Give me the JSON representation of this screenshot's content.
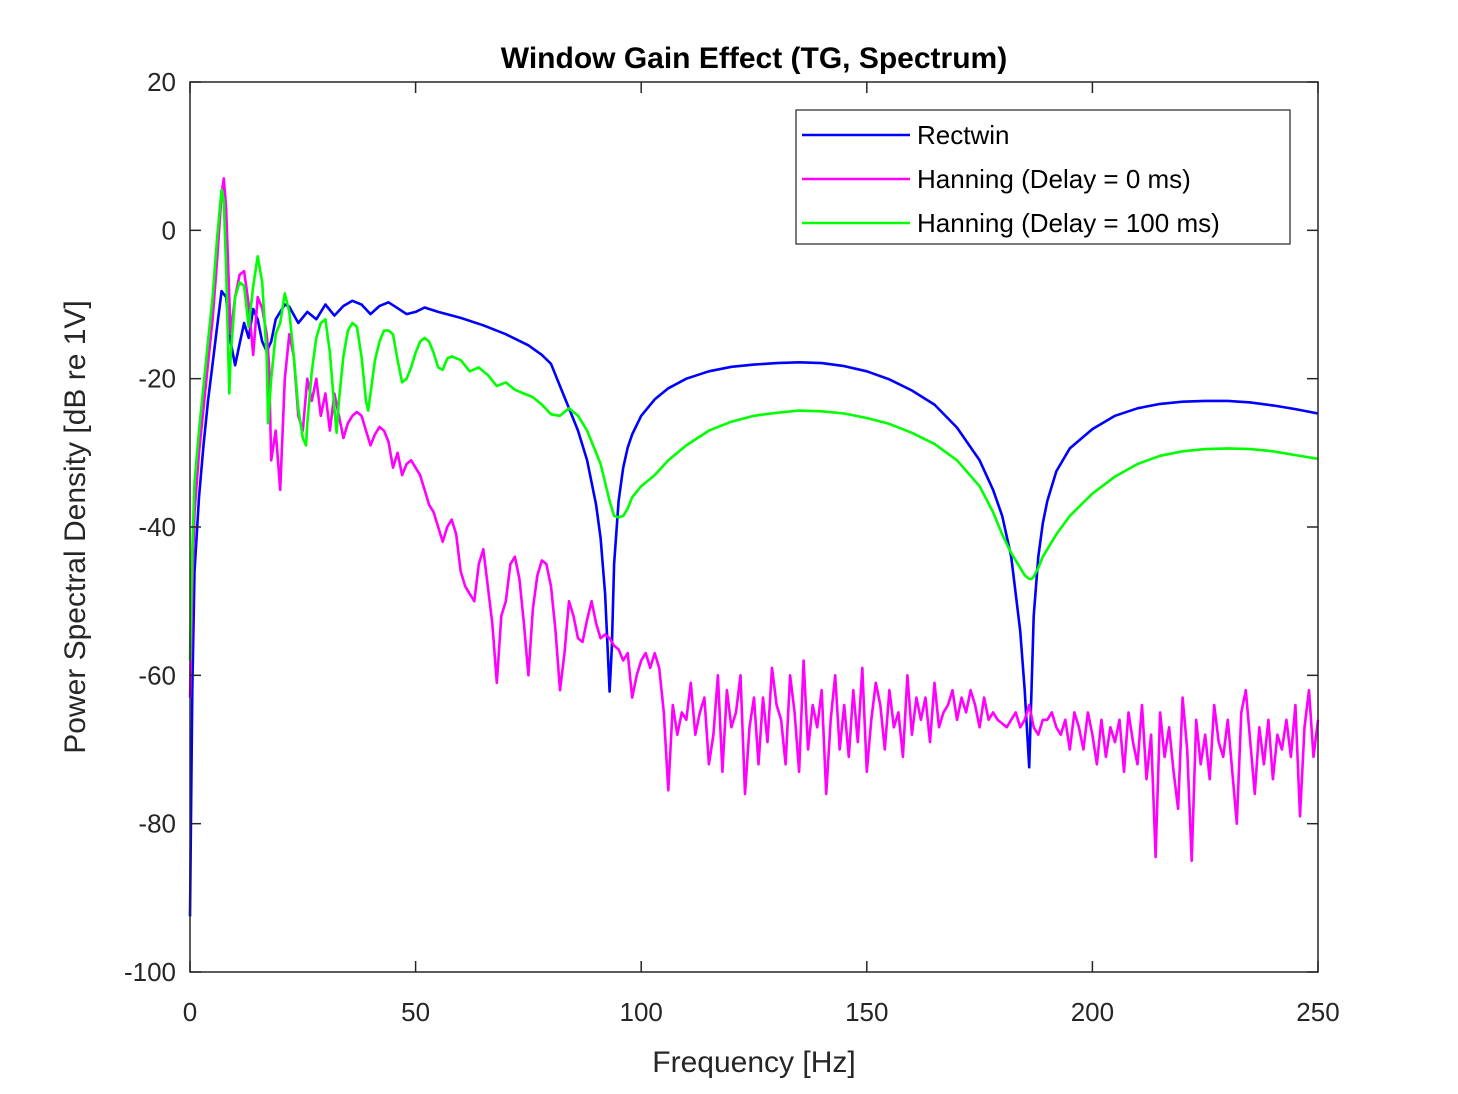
{
  "chart_data": {
    "type": "line",
    "title": "Window Gain Effect (TG, Spectrum)",
    "xlabel": "Frequency [Hz]",
    "ylabel": "Power Spectral Density [dB re 1V]",
    "xlim": [
      0,
      250
    ],
    "ylim": [
      -100,
      20
    ],
    "xticks": [
      0,
      50,
      100,
      150,
      200,
      250
    ],
    "yticks": [
      20,
      0,
      -20,
      -40,
      -60,
      -80,
      -100
    ],
    "grid": false,
    "legend_position": "top-right",
    "series": [
      {
        "name": "Rectwin",
        "color": "#0000ff",
        "x": [
          0,
          0.5,
          1,
          2,
          3,
          4,
          5,
          6,
          7,
          8,
          9,
          10,
          11,
          12,
          13,
          14,
          15,
          16,
          17,
          18,
          19,
          20,
          21,
          22,
          24,
          26,
          28,
          30,
          32,
          34,
          36,
          38,
          40,
          42,
          44,
          46,
          48,
          50,
          52,
          55,
          60,
          65,
          70,
          75,
          78,
          80,
          82,
          84,
          86,
          88,
          90,
          91,
          92,
          93,
          93.5,
          94,
          95,
          96,
          97,
          98,
          100,
          103,
          106,
          110,
          115,
          120,
          125,
          130,
          135,
          140,
          145,
          150,
          155,
          160,
          165,
          170,
          175,
          178,
          180,
          182,
          184,
          185,
          186,
          186.5,
          187,
          188,
          189,
          190,
          192,
          195,
          200,
          205,
          210,
          215,
          220,
          225,
          230,
          235,
          240,
          245,
          250
        ],
        "y": [
          -92.5,
          -62,
          -46,
          -36,
          -29,
          -23,
          -18,
          -13,
          -8.2,
          -9,
          -15,
          -18.2,
          -15.3,
          -12.5,
          -14.5,
          -10.6,
          -12,
          -15,
          -16.3,
          -15,
          -12,
          -11,
          -10,
          -10.3,
          -12.5,
          -11,
          -12,
          -10,
          -11.5,
          -10.2,
          -9.5,
          -10,
          -11.3,
          -10.2,
          -9.7,
          -10.5,
          -11.3,
          -11,
          -10.4,
          -11,
          -11.8,
          -12.8,
          -14,
          -15.5,
          -16.8,
          -18,
          -21,
          -24,
          -27,
          -31,
          -37,
          -41.5,
          -49,
          -62.2,
          -56,
          -45,
          -36.5,
          -32,
          -29.3,
          -27.5,
          -25,
          -22.8,
          -21.3,
          -20,
          -19,
          -18.4,
          -18.1,
          -17.9,
          -17.8,
          -17.9,
          -18.3,
          -19,
          -20.1,
          -21.6,
          -23.5,
          -26.6,
          -31,
          -35,
          -38.5,
          -44,
          -54,
          -62,
          -72.4,
          -62,
          -52,
          -44,
          -39.5,
          -36.5,
          -32.5,
          -29.4,
          -26.8,
          -25,
          -24,
          -23.4,
          -23.1,
          -23,
          -23,
          -23.2,
          -23.6,
          -24.1,
          -24.7
        ]
      },
      {
        "name": "Hanning (Delay = 0 ms)",
        "color": "#ff00ff",
        "x": [
          0,
          0.5,
          1,
          2,
          3,
          4,
          5,
          6,
          7,
          7.5,
          8,
          9,
          10,
          11,
          12,
          13,
          14,
          15,
          16,
          17,
          17.5,
          18,
          19,
          20,
          21,
          22,
          23,
          24,
          25,
          26,
          27,
          28,
          29,
          30,
          31,
          32,
          33,
          34,
          35,
          36,
          37,
          38,
          39,
          40,
          41,
          42,
          43,
          44,
          45,
          46,
          47,
          48,
          49,
          50,
          51,
          52,
          53,
          54,
          55,
          56,
          57,
          58,
          59,
          60,
          61,
          62,
          63,
          64,
          65,
          66,
          67,
          68,
          69,
          70,
          71,
          72,
          73,
          74,
          75,
          76,
          77,
          78,
          79,
          80,
          81,
          82,
          83,
          84,
          85,
          86,
          87,
          88,
          89,
          90,
          91,
          92,
          93,
          94,
          95,
          96,
          97,
          98,
          99,
          100,
          101,
          102,
          103,
          104,
          105,
          106,
          107,
          108,
          109,
          110,
          111,
          112,
          113,
          114,
          115,
          116,
          117,
          118,
          119,
          120,
          121,
          122,
          123,
          124,
          125,
          126,
          127,
          128,
          129,
          130,
          131,
          132,
          133,
          134,
          135,
          136,
          137,
          138,
          139,
          140,
          141,
          142,
          143,
          144,
          145,
          146,
          147,
          148,
          149,
          150,
          151,
          152,
          153,
          154,
          155,
          156,
          157,
          158,
          159,
          160,
          161,
          162,
          163,
          164,
          165,
          166,
          167,
          168,
          169,
          170,
          171,
          172,
          173,
          174,
          175,
          176,
          177,
          178,
          179,
          180,
          181,
          182,
          183,
          184,
          185,
          186,
          187,
          188,
          189,
          190,
          191,
          192,
          193,
          194,
          195,
          196,
          197,
          198,
          199,
          200,
          201,
          202,
          203,
          204,
          205,
          206,
          207,
          208,
          209,
          210,
          211,
          212,
          213,
          214,
          215,
          216,
          217,
          218,
          219,
          220,
          221,
          222,
          223,
          224,
          225,
          226,
          227,
          228,
          229,
          230,
          231,
          232,
          233,
          234,
          235,
          236,
          237,
          238,
          239,
          240,
          241,
          242,
          243,
          244,
          245,
          246,
          247,
          248,
          249,
          250
        ],
        "y": [
          -63,
          -48,
          -38,
          -30,
          -24,
          -18,
          -12,
          -4,
          5,
          7,
          3,
          -14,
          -9,
          -6,
          -5.5,
          -10,
          -16.8,
          -9,
          -10.5,
          -14,
          -18,
          -31,
          -27,
          -35,
          -20,
          -14,
          -17,
          -25,
          -27,
          -20,
          -23,
          -20,
          -25,
          -22,
          -27,
          -22,
          -25,
          -28,
          -26,
          -25,
          -24.5,
          -25,
          -27,
          -29,
          -27.5,
          -26.5,
          -27,
          -28.5,
          -32,
          -30,
          -33,
          -31.5,
          -31,
          -32,
          -33,
          -35,
          -37,
          -38,
          -40,
          -42,
          -40,
          -39,
          -41,
          -46,
          -48,
          -49,
          -50,
          -45,
          -43,
          -48,
          -53,
          -61,
          -52,
          -50,
          -45,
          -44,
          -47,
          -53,
          -60,
          -51,
          -46.5,
          -44.5,
          -45,
          -48,
          -54,
          -62,
          -57,
          -50,
          -52,
          -55,
          -55.5,
          -52.5,
          -50,
          -53,
          -55,
          -54.5,
          -55,
          -56,
          -56.5,
          -58,
          -57,
          -63,
          -60,
          -58,
          -57,
          -59,
          -57,
          -59,
          -65,
          -75.5,
          -64,
          -68,
          -65,
          -66,
          -61,
          -68,
          -65,
          -63,
          -72,
          -68,
          -60,
          -73,
          -62,
          -67,
          -65,
          -60,
          -76,
          -67,
          -63,
          -72,
          -63,
          -69,
          -59,
          -64,
          -66,
          -72,
          -60,
          -65,
          -73,
          -58,
          -70,
          -64,
          -67,
          -62,
          -76,
          -66,
          -60,
          -70,
          -64,
          -71,
          -62,
          -69,
          -59,
          -73,
          -66,
          -61,
          -64,
          -70,
          -62,
          -67,
          -65,
          -71,
          -60,
          -68,
          -63,
          -66,
          -63,
          -69,
          -61,
          -67,
          -65,
          -64,
          -62,
          -66,
          -63,
          -65,
          -62,
          -64,
          -67,
          -63,
          -66,
          -65,
          -66,
          -66.5,
          -67,
          -66,
          -65,
          -67,
          -66,
          -64,
          -67,
          -68,
          -66,
          -66,
          -65,
          -67,
          -68,
          -66,
          -70,
          -65,
          -67,
          -70,
          -65,
          -68,
          -72,
          -66,
          -71,
          -67,
          -69,
          -66,
          -73,
          -65,
          -69,
          -72,
          -64,
          -74,
          -68,
          -84.5,
          -65,
          -71,
          -67,
          -73,
          -78,
          -63,
          -70,
          -85,
          -66,
          -72,
          -68,
          -74,
          -64,
          -69,
          -71,
          -66,
          -73,
          -80,
          -65,
          -62,
          -69,
          -76,
          -67,
          -72,
          -66,
          -74,
          -68,
          -70,
          -66,
          -71,
          -64,
          -79,
          -67,
          -62,
          -71,
          -66
        ]
      },
      {
        "name": "Hanning (Delay = 100 ms)",
        "color": "#00ff00",
        "x": [
          0,
          0.5,
          1,
          2,
          3,
          4,
          5,
          6,
          7,
          7.5,
          8,
          8.7,
          9,
          10,
          11,
          12,
          13,
          14,
          15,
          16,
          17,
          17.3,
          18,
          19,
          20,
          21,
          22,
          23,
          24,
          25,
          25.7,
          26,
          27,
          28,
          29,
          30,
          31,
          32,
          32.5,
          33,
          34,
          35,
          36,
          37,
          38,
          39,
          39.5,
          40,
          41,
          42,
          43,
          44,
          45,
          46,
          47,
          48,
          49,
          50,
          51,
          52,
          53,
          54,
          55,
          56,
          57,
          58,
          60,
          62,
          64,
          66,
          68,
          70,
          72,
          74,
          76,
          78,
          80,
          82,
          84,
          86,
          88,
          90,
          91,
          92,
          93,
          94,
          95,
          96,
          97,
          98,
          100,
          103,
          106,
          110,
          115,
          120,
          125,
          130,
          135,
          140,
          145,
          150,
          155,
          160,
          165,
          170,
          175,
          178,
          180,
          182,
          184,
          185,
          186,
          186.5,
          187,
          188,
          189,
          190,
          192,
          195,
          200,
          205,
          210,
          215,
          220,
          225,
          230,
          235,
          240,
          245,
          250
        ],
        "y": [
          -58,
          -43,
          -34,
          -27,
          -21,
          -15,
          -9,
          -1,
          5.5,
          4,
          -5,
          -22,
          -17,
          -9,
          -7,
          -7.5,
          -13,
          -7.5,
          -3.5,
          -7,
          -17,
          -26,
          -20,
          -14,
          -12.5,
          -8.5,
          -11,
          -17,
          -24,
          -28,
          -29,
          -26,
          -19,
          -14.5,
          -12.5,
          -12,
          -16.5,
          -24,
          -27.3,
          -23,
          -17,
          -13.5,
          -12.5,
          -13,
          -17,
          -23,
          -24.3,
          -22,
          -17.5,
          -15,
          -13.5,
          -13.5,
          -14,
          -17.5,
          -20.5,
          -20,
          -18.5,
          -16.5,
          -15,
          -14.5,
          -15,
          -16.5,
          -18.5,
          -18.8,
          -17.3,
          -17,
          -17.5,
          -19,
          -18.5,
          -19.5,
          -21,
          -20.5,
          -21.5,
          -22,
          -22.5,
          -23.5,
          -24.8,
          -25,
          -24,
          -25,
          -27,
          -30,
          -31.5,
          -34,
          -36.5,
          -38.5,
          -38.7,
          -38.5,
          -37.5,
          -36,
          -34.5,
          -33,
          -31,
          -29,
          -27,
          -25.8,
          -25,
          -24.6,
          -24.3,
          -24.4,
          -24.7,
          -25.3,
          -26.1,
          -27.3,
          -28.8,
          -31,
          -34.5,
          -38,
          -41,
          -43.5,
          -45.5,
          -46.5,
          -47,
          -47,
          -46.7,
          -45.5,
          -44,
          -43,
          -41,
          -38.5,
          -35.5,
          -33.2,
          -31.5,
          -30.4,
          -29.8,
          -29.5,
          -29.4,
          -29.5,
          -29.8,
          -30.3,
          -30.8
        ]
      }
    ]
  }
}
